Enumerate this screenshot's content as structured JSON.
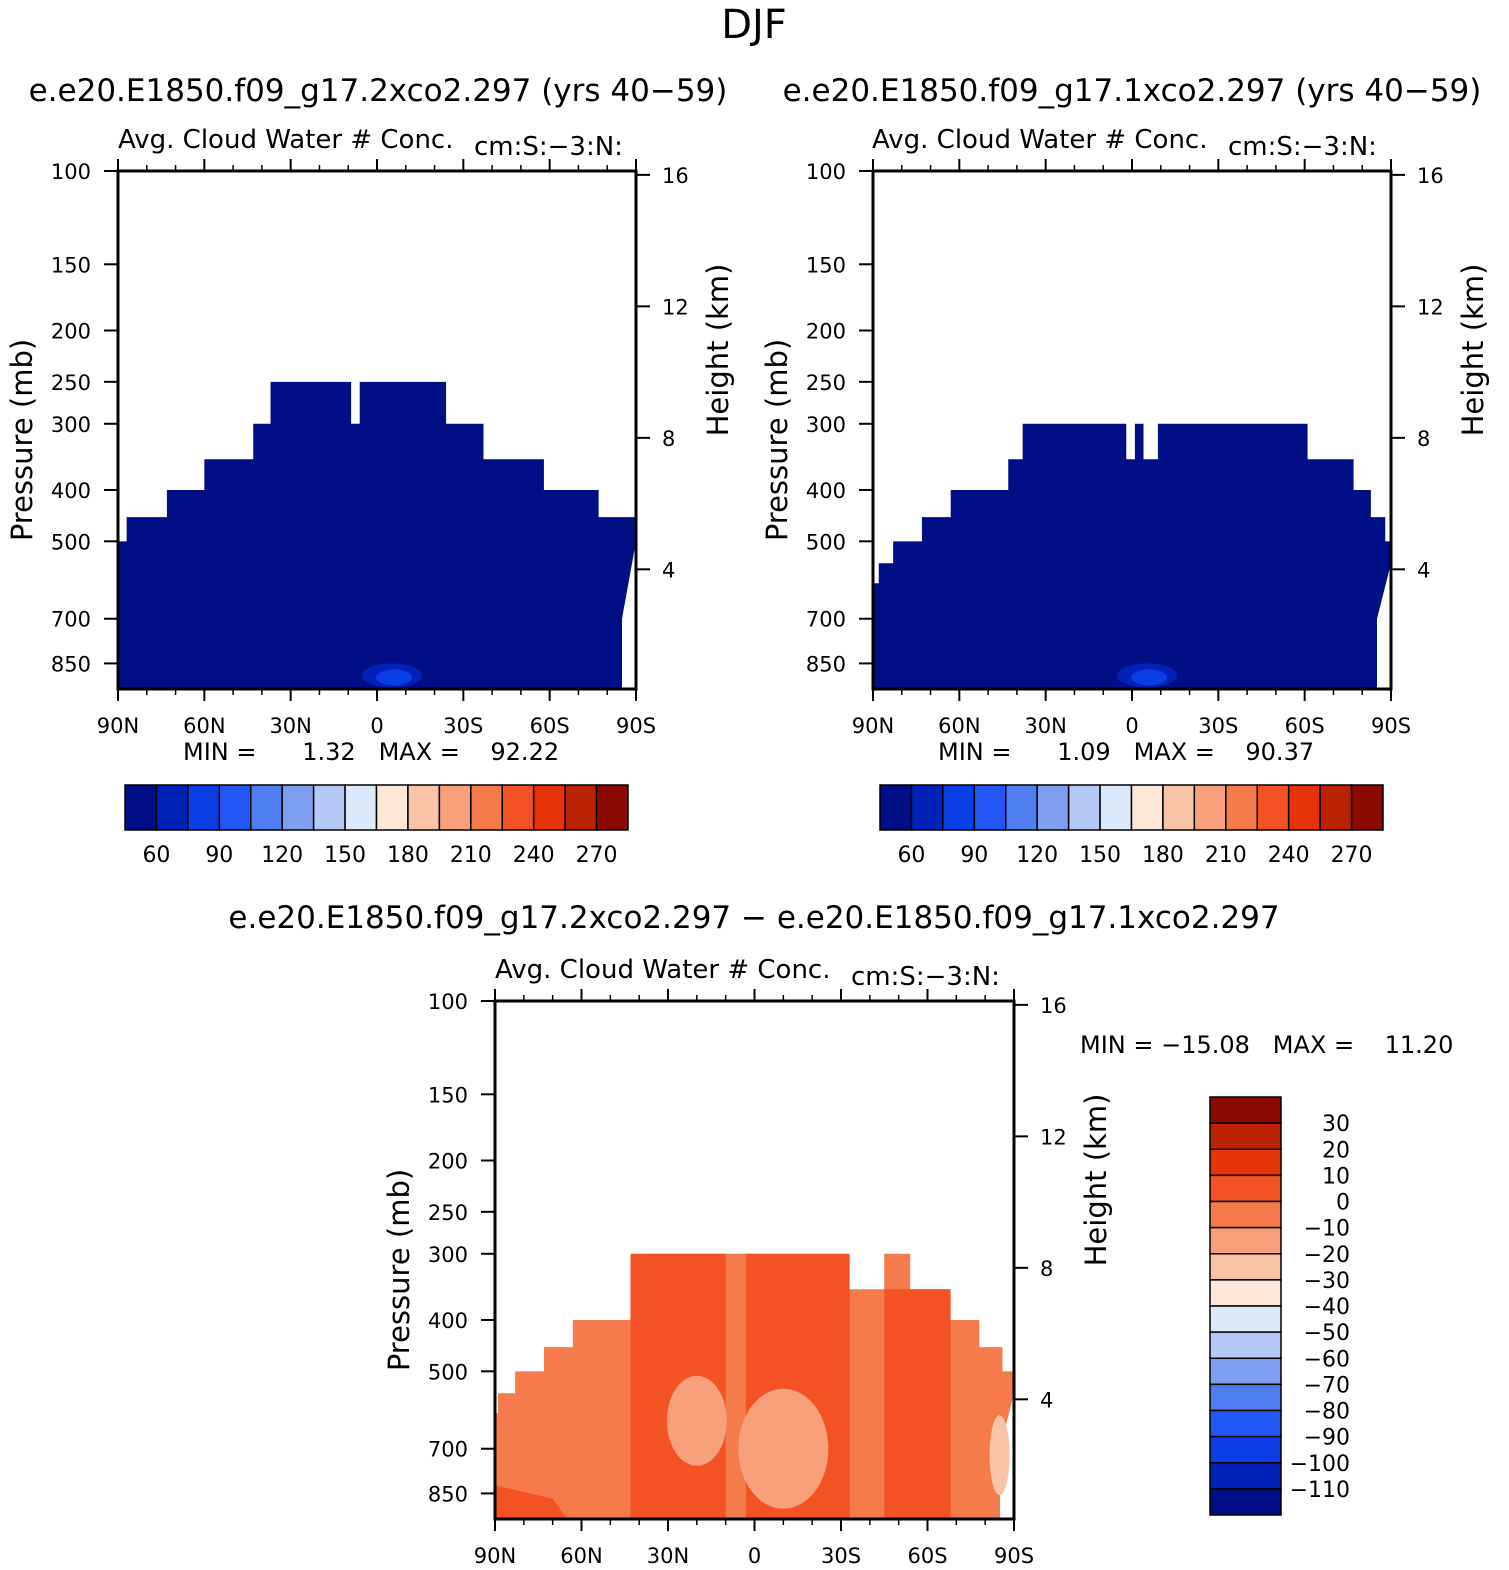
{
  "figure": {
    "title": "DJF",
    "difference_title": "e.e20.E1850.f09_g17.2xco2.297 − e.e20.E1850.f09_g17.1xco2.297"
  },
  "colors": {
    "abs_palette": [
      "#000f85",
      "#0022b8",
      "#0a3fe6",
      "#2057f5",
      "#4f7ef2",
      "#7e9ff0",
      "#b3c8f7",
      "#dbe9fa",
      "#fde8d8",
      "#f9c3a7",
      "#f7a07b",
      "#f57a4c",
      "#f45124",
      "#e53408",
      "#bb2304",
      "#8b0b03"
    ],
    "diff_palette": [
      "#000f85",
      "#0022b8",
      "#0a3fe6",
      "#2057f5",
      "#4f7ef2",
      "#7e9ff0",
      "#b3c8f7",
      "#dbe9fa",
      "#fde8d8",
      "#f9c3a7",
      "#f7a07b",
      "#f57a4c",
      "#f45124",
      "#e53408",
      "#bb2304",
      "#8b0b03"
    ]
  },
  "chart_data": [
    {
      "type": "heatmap",
      "id": "panel1",
      "case_title": "e.e20.E1850.f09_g17.2xco2.297 (yrs 40−59)",
      "variable_label": "Avg. Cloud Water # Conc.",
      "units_label": "cm:S:−3:N:",
      "ylabel": "Pressure (mb)",
      "ylabel_right": "Height (km)",
      "x_ticks": [
        "90N",
        "60N",
        "30N",
        "0",
        "30S",
        "60S",
        "90S"
      ],
      "x_range": [
        90,
        -90
      ],
      "y_ticks": [
        100,
        150,
        200,
        250,
        300,
        400,
        500,
        700,
        850
      ],
      "y_range_mb": [
        100,
        950
      ],
      "height_ticks_km": [
        4,
        8,
        12,
        16
      ],
      "stats_text": "MIN =      1.32   MAX =    92.22",
      "min": 1.32,
      "max": 92.22,
      "colorbar_labels": [
        "60",
        "90",
        "120",
        "150",
        "180",
        "210",
        "240",
        "270"
      ],
      "cloud_top_mb": [
        [
          90,
          500
        ],
        [
          87,
          450
        ],
        [
          73,
          400
        ],
        [
          60,
          350
        ],
        [
          43,
          300
        ],
        [
          37,
          250
        ],
        [
          10,
          250
        ],
        [
          9,
          300
        ],
        [
          7,
          300
        ],
        [
          6,
          250
        ],
        [
          4,
          250
        ],
        [
          -12,
          250
        ],
        [
          -24,
          300
        ],
        [
          -37,
          350
        ],
        [
          -58,
          400
        ],
        [
          -77,
          450
        ],
        [
          -90,
          500
        ]
      ],
      "deep_blue_core": {
        "lat": -8,
        "p_mb": 880,
        "value": 80
      }
    },
    {
      "type": "heatmap",
      "id": "panel2",
      "case_title": "e.e20.E1850.f09_g17.1xco2.297 (yrs 40−59)",
      "variable_label": "Avg. Cloud Water # Conc.",
      "units_label": "cm:S:−3:N:",
      "ylabel": "Pressure (mb)",
      "ylabel_right": "Height (km)",
      "x_ticks": [
        "90N",
        "60N",
        "30N",
        "0",
        "30S",
        "60S",
        "90S"
      ],
      "x_range": [
        90,
        -90
      ],
      "y_ticks": [
        100,
        150,
        200,
        250,
        300,
        400,
        500,
        700,
        850
      ],
      "y_range_mb": [
        100,
        950
      ],
      "height_ticks_km": [
        4,
        8,
        12,
        16
      ],
      "stats_text": "MIN =      1.09   MAX =    90.37",
      "min": 1.09,
      "max": 90.37,
      "colorbar_labels": [
        "60",
        "90",
        "120",
        "150",
        "180",
        "210",
        "240",
        "270"
      ],
      "cloud_top_mb": [
        [
          90,
          600
        ],
        [
          88,
          550
        ],
        [
          83,
          500
        ],
        [
          73,
          450
        ],
        [
          63,
          400
        ],
        [
          43,
          350
        ],
        [
          38,
          300
        ],
        [
          3,
          300
        ],
        [
          2,
          350
        ],
        [
          0,
          350
        ],
        [
          -1,
          300
        ],
        [
          -3,
          300
        ],
        [
          -4,
          350
        ],
        [
          -8,
          350
        ],
        [
          -9,
          300
        ],
        [
          -45,
          300
        ],
        [
          -61,
          350
        ],
        [
          -77,
          400
        ],
        [
          -83,
          450
        ],
        [
          -88,
          500
        ],
        [
          -90,
          550
        ]
      ],
      "deep_blue_core": {
        "lat": -8,
        "p_mb": 880,
        "value": 80
      }
    },
    {
      "type": "heatmap",
      "id": "panel3",
      "variable_label": "Avg. Cloud Water # Conc.",
      "units_label": "cm:S:−3:N:",
      "ylabel": "Pressure (mb)",
      "ylabel_right": "Height (km)",
      "x_ticks": [
        "90N",
        "60N",
        "30N",
        "0",
        "30S",
        "60S",
        "90S"
      ],
      "x_range": [
        90,
        -90
      ],
      "y_ticks": [
        100,
        150,
        200,
        250,
        300,
        400,
        500,
        700,
        850
      ],
      "y_range_mb": [
        100,
        950
      ],
      "height_ticks_km": [
        4,
        8,
        12,
        16
      ],
      "stats_text": "MIN = −15.08   MAX =    11.20",
      "min": -15.08,
      "max": 11.2,
      "colorbar_labels": [
        "30",
        "20",
        "10",
        "0",
        "−10",
        "−20",
        "−30",
        "−40",
        "−50",
        "−60",
        "−70",
        "−80",
        "−90",
        "−100",
        "−110"
      ],
      "cloud_top_mb": [
        [
          90,
          600
        ],
        [
          89,
          550
        ],
        [
          83,
          500
        ],
        [
          73,
          450
        ],
        [
          63,
          400
        ],
        [
          43,
          350
        ],
        [
          38,
          300
        ],
        [
          2,
          300
        ],
        [
          1,
          350
        ],
        [
          0,
          300
        ],
        [
          -3,
          300
        ],
        [
          -4,
          350
        ],
        [
          -45,
          300
        ],
        [
          -54,
          350
        ],
        [
          -68,
          400
        ],
        [
          -78,
          450
        ],
        [
          -86,
          500
        ],
        [
          -90,
          550
        ]
      ],
      "fill_value_range": [
        -10,
        10
      ],
      "strong_regions_note": "stronger positive (0 to 10) columns near 30N-10N and 0-30S and over Antarctic edge"
    }
  ]
}
